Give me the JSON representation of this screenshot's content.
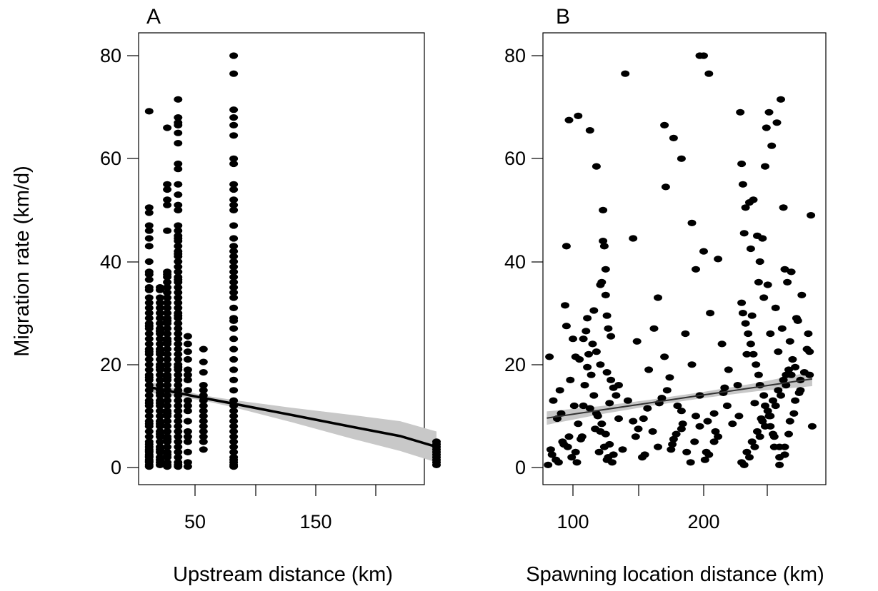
{
  "figure": {
    "ylabel": "Migration rate (km/d)"
  },
  "chart_data": [
    {
      "type": "scatter",
      "panel_label": "A",
      "xlabel": "Upstream distance (km)",
      "ylabel": "Migration rate (km/d)",
      "xlim": [
        5,
        260
      ],
      "ylim": [
        0,
        80
      ],
      "x_ticks": [
        50,
        100,
        150,
        200
      ],
      "x_tick_labels": [
        "50",
        "",
        "150",
        ""
      ],
      "y_ticks": [
        0,
        20,
        40,
        60,
        80
      ],
      "y_tick_labels": [
        "0",
        "20",
        "40",
        "60",
        "80"
      ],
      "grid": false,
      "point_color": "#000000",
      "fit": {
        "x": [
          12,
          21,
          27,
          36,
          46,
          57,
          82,
          130,
          180,
          220,
          250
        ],
        "y": [
          15.6,
          15.2,
          14.9,
          14.5,
          14.0,
          13.5,
          12.4,
          10.2,
          7.9,
          6.1,
          4.0
        ],
        "lower": [
          14.5,
          14.3,
          14.1,
          13.8,
          13.4,
          13.0,
          11.7,
          8.8,
          5.6,
          3.2,
          1.0
        ],
        "upper": [
          16.7,
          16.1,
          15.7,
          15.2,
          14.6,
          14.0,
          13.1,
          11.6,
          10.2,
          9.0,
          7.0
        ],
        "line_color": "#000000",
        "band_color": "#c8c8c8"
      },
      "points": {
        "x": [
          12,
          12,
          12,
          12,
          12,
          12,
          12,
          12,
          12,
          12,
          12,
          12,
          12,
          12,
          12,
          12,
          12,
          12,
          12,
          12,
          12,
          12,
          12,
          12,
          12,
          12,
          12,
          12,
          12,
          12,
          12,
          12,
          12,
          12,
          12,
          12,
          12,
          12,
          12,
          12,
          12,
          12,
          12,
          12,
          12,
          12,
          12,
          12,
          12,
          12,
          12,
          12,
          12,
          12,
          12,
          12,
          12,
          12,
          12,
          12,
          21,
          21,
          21,
          21,
          21,
          21,
          21,
          21,
          21,
          21,
          21,
          21,
          21,
          21,
          21,
          21,
          21,
          21,
          21,
          21,
          21,
          21,
          21,
          21,
          21,
          21,
          21,
          21,
          21,
          21,
          21,
          21,
          21,
          21,
          21,
          21,
          21,
          21,
          21,
          21,
          21,
          21,
          21,
          21,
          21,
          27,
          27,
          27,
          27,
          27,
          27,
          27,
          27,
          27,
          27,
          27,
          27,
          27,
          27,
          27,
          27,
          27,
          27,
          27,
          27,
          27,
          27,
          27,
          27,
          27,
          27,
          27,
          27,
          27,
          27,
          27,
          27,
          27,
          27,
          27,
          27,
          27,
          27,
          27,
          27,
          27,
          27,
          27,
          27,
          27,
          27,
          27,
          27,
          27,
          27,
          27,
          27,
          27,
          36,
          36,
          36,
          36,
          36,
          36,
          36,
          36,
          36,
          36,
          36,
          36,
          36,
          36,
          36,
          36,
          36,
          36,
          36,
          36,
          36,
          36,
          36,
          36,
          36,
          36,
          36,
          36,
          36,
          36,
          36,
          36,
          36,
          36,
          36,
          36,
          36,
          36,
          36,
          36,
          36,
          36,
          36,
          36,
          36,
          36,
          36,
          36,
          36,
          36,
          36,
          36,
          36,
          36,
          36,
          36,
          36,
          36,
          36,
          36,
          36,
          36,
          36,
          36,
          36,
          36,
          44,
          44,
          44,
          44,
          44,
          44,
          44,
          44,
          44,
          44,
          44,
          44,
          44,
          44,
          44,
          44,
          44,
          44,
          57,
          57,
          57,
          57,
          57,
          57,
          57,
          57,
          57,
          57,
          57,
          57,
          57,
          57,
          57,
          57,
          82,
          82,
          82,
          82,
          82,
          82,
          82,
          82,
          82,
          82,
          82,
          82,
          82,
          82,
          82,
          82,
          82,
          82,
          82,
          82,
          82,
          82,
          82,
          82,
          82,
          82,
          82,
          82,
          82,
          82,
          82,
          82,
          82,
          82,
          82,
          82,
          82,
          82,
          82,
          82,
          82,
          82,
          82,
          82,
          82,
          82,
          82,
          82,
          82,
          82,
          82,
          82,
          250,
          250,
          250,
          250,
          250,
          250,
          250,
          250,
          250,
          250
        ],
        "y": [
          69.2,
          50.5,
          49.5,
          47,
          46,
          44.5,
          43,
          40,
          38,
          35,
          34.5,
          33,
          32,
          31,
          30,
          29,
          28,
          27,
          26,
          25,
          24,
          23,
          22,
          21,
          20,
          19,
          18,
          17,
          16,
          15,
          14,
          13,
          12,
          11,
          10,
          9,
          8,
          7,
          6,
          5,
          4.5,
          4,
          3.5,
          3,
          2.5,
          2,
          1.5,
          1,
          0.5,
          0.2,
          36.5,
          37.5,
          27.5,
          17.5,
          8.5,
          1.2,
          2.2,
          3.2,
          12.5,
          22.5,
          34.5,
          33,
          31,
          29,
          27,
          25,
          23,
          21,
          19,
          17,
          15,
          13,
          11,
          9,
          7,
          5,
          3,
          1,
          0.5,
          2,
          4,
          6,
          8,
          10,
          12,
          14,
          16,
          18,
          20,
          22,
          24,
          26,
          28,
          30,
          32,
          35,
          26.5,
          19.5,
          12.5,
          6.5,
          3.5,
          1.5,
          8.5,
          14.5,
          22.5,
          66,
          55,
          54,
          52,
          51,
          46,
          38,
          37.5,
          37,
          36,
          35,
          34,
          33,
          32,
          31,
          30,
          29,
          28,
          27,
          26,
          25,
          24,
          23,
          22,
          21,
          20,
          19,
          18,
          17,
          16,
          15,
          14,
          13,
          12,
          11,
          10,
          9,
          8,
          7,
          6,
          5,
          4,
          3,
          2,
          1,
          0.5,
          0.2,
          24.5,
          17.5,
          10.5,
          5.5,
          2.5,
          28.5,
          71.5,
          68,
          67,
          66.5,
          65,
          63,
          59,
          58,
          55,
          53,
          51,
          50,
          47,
          46,
          45,
          44,
          43,
          42,
          41,
          40,
          39,
          38,
          37,
          36,
          35,
          34,
          33,
          32,
          31,
          30,
          29,
          28,
          27,
          26,
          25,
          24,
          23,
          22,
          21,
          20,
          19,
          18,
          17,
          16,
          15,
          14,
          13,
          12,
          11,
          10,
          9,
          8,
          7,
          6,
          5,
          4,
          3,
          2,
          1,
          0.5,
          0.2,
          44.5,
          41.5,
          36.5,
          29.5,
          19.5,
          25.5,
          24,
          22.5,
          21,
          19,
          17,
          15,
          13,
          11,
          9,
          7,
          5,
          3,
          1,
          0.2,
          18,
          12,
          6,
          23,
          20.5,
          18.5,
          16,
          15,
          14,
          13,
          12,
          11,
          10,
          9,
          8,
          7,
          6,
          5,
          3.5,
          80,
          76.5,
          69.5,
          68,
          66.5,
          64.5,
          60,
          59,
          55,
          54,
          52,
          51,
          50,
          47,
          43,
          42,
          41,
          40,
          39,
          38,
          37,
          36,
          35,
          34,
          33,
          31,
          29,
          27,
          25,
          23,
          21,
          19,
          17,
          15,
          13,
          12,
          11,
          10,
          9,
          8,
          7,
          6,
          5,
          4,
          3,
          2,
          1.5,
          1,
          0.5,
          0.2,
          44.5,
          28.5,
          5,
          4.5,
          4,
          3.5,
          3,
          2.5,
          2,
          1.5,
          1,
          0.5
        ]
      }
    },
    {
      "type": "scatter",
      "panel_label": "B",
      "xlabel": "Spawning location distance (km)",
      "ylabel": "",
      "xlim": [
        78,
        285
      ],
      "ylim": [
        0,
        80
      ],
      "x_ticks": [
        100,
        150,
        200,
        250
      ],
      "x_tick_labels": [
        "100",
        "",
        "200",
        ""
      ],
      "y_ticks": [
        0,
        20,
        40,
        60,
        80
      ],
      "y_tick_labels": [
        "0",
        "20",
        "40",
        "60",
        "80"
      ],
      "grid": false,
      "point_color": "#000000",
      "fit": {
        "x": [
          80,
          120,
          160,
          200,
          240,
          283
        ],
        "y": [
          9.6,
          11.1,
          12.6,
          14.1,
          15.6,
          17.2
        ],
        "lower": [
          8.3,
          10.3,
          12.0,
          13.5,
          14.8,
          15.8
        ],
        "upper": [
          10.9,
          11.9,
          13.2,
          14.7,
          16.4,
          18.6
        ],
        "line_color": "#333333",
        "band_color": "#c8c8c8"
      },
      "points": {
        "x": [
          97,
          104,
          113,
          118,
          123,
          123,
          124,
          125,
          122,
          121,
          125,
          126,
          127,
          129,
          116,
          111,
          108,
          102,
          95,
          94,
          100,
          105,
          118,
          121,
          126,
          129,
          131,
          133,
          135,
          128,
          140,
          146,
          149,
          154,
          158,
          162,
          165,
          170,
          174,
          177,
          180,
          183,
          186,
          191,
          194,
          197,
          200,
          203,
          205,
          208,
          211,
          214,
          216,
          219,
          148,
          155,
          166,
          175,
          184,
          193,
          202,
          209,
          170,
          177,
          183,
          197,
          200,
          204,
          171,
          191,
          228,
          229,
          230,
          232,
          235,
          238,
          241,
          245,
          247,
          248,
          250,
          252,
          256,
          259,
          261,
          262,
          264,
          267,
          272,
          275,
          280,
          282,
          231,
          236,
          243,
          249,
          255,
          260,
          266,
          270,
          274,
          233,
          237,
          242,
          246,
          251,
          257,
          263,
          268,
          271,
          279,
          281,
          283,
          226,
          227,
          239,
          244,
          253,
          258,
          82,
          85,
          88,
          90,
          92,
          95,
          98,
          101,
          104,
          107,
          83,
          87,
          91,
          96,
          99,
          103,
          110,
          112,
          114,
          116,
          119,
          121,
          124,
          127,
          130,
          109,
          113,
          117,
          120,
          126,
          81,
          84,
          89,
          93,
          97,
          102,
          106,
          108,
          111,
          115,
          118,
          122,
          125,
          128,
          131,
          135,
          142,
          150,
          157,
          165,
          172,
          179,
          187,
          194,
          201,
          208,
          215,
          222,
          138,
          146,
          153,
          161,
          168,
          176,
          183,
          190,
          197,
          204,
          211,
          218,
          229,
          232,
          236,
          240,
          243,
          247,
          251,
          254,
          258,
          262,
          265,
          269,
          273,
          277,
          281,
          230,
          234,
          238,
          242,
          246,
          250,
          254,
          258,
          262,
          266,
          270,
          274,
          229,
          233,
          237,
          241,
          245,
          249,
          253,
          257,
          261,
          265,
          231,
          235,
          239,
          243,
          247,
          251,
          255,
          259,
          263,
          267
        ],
        "y": [
          67.5,
          68.3,
          65.5,
          58.5,
          50,
          44,
          43,
          38.5,
          36,
          35.5,
          33.5,
          29.5,
          27,
          25.5,
          30.5,
          29,
          25,
          21.5,
          43,
          31.5,
          25,
          21,
          22.5,
          20,
          18.5,
          17,
          15.5,
          14,
          16,
          12.5,
          76.5,
          44.5,
          24.5,
          9.5,
          19,
          27,
          33,
          21.5,
          17.5,
          5.5,
          12,
          7.5,
          26,
          20,
          38.5,
          14,
          42,
          9,
          30,
          10.5,
          40.5,
          24,
          15.5,
          19,
          6,
          2.5,
          12.5,
          3.5,
          8.5,
          5,
          3,
          7,
          66.5,
          64,
          60,
          80,
          80,
          76.5,
          54.5,
          47.5,
          69,
          59,
          55,
          50.5,
          51.5,
          52,
          45,
          44.5,
          58.5,
          66,
          69,
          62.5,
          67,
          71.5,
          50.5,
          38.5,
          36,
          38,
          28.5,
          33.5,
          26,
          49,
          45.5,
          42.5,
          40,
          35.5,
          31,
          27,
          24.5,
          19.5,
          15,
          22,
          29.5,
          36,
          33,
          26,
          22.5,
          18,
          21,
          29,
          23,
          18,
          8,
          16,
          10,
          12.5,
          9.5,
          6.5,
          4,
          21.5,
          13,
          9.5,
          15,
          5,
          27.5,
          17,
          12,
          8.5,
          6,
          3.5,
          1.5,
          10.5,
          4,
          2,
          1,
          26.5,
          22,
          18,
          14,
          10,
          7,
          4,
          2,
          1,
          16,
          11.5,
          7.5,
          3,
          1.5,
          0.5,
          2.5,
          1,
          4.5,
          6,
          3,
          5.5,
          12,
          19.5,
          24,
          10.5,
          8.5,
          6.5,
          4.5,
          2.5,
          9.5,
          13,
          7.5,
          11.5,
          4,
          15,
          6.5,
          3,
          10,
          1.5,
          5,
          14.5,
          8.5,
          3.5,
          9,
          2,
          7,
          13.5,
          4.5,
          11,
          1,
          8,
          2.5,
          6,
          12,
          32,
          28,
          24,
          20,
          16,
          12,
          8,
          4,
          0.5,
          2.5,
          6.5,
          10.5,
          14.5,
          18.5,
          22.5,
          30,
          26,
          22,
          18,
          14,
          10,
          6,
          2,
          4,
          9,
          13,
          17,
          1,
          3,
          5,
          7,
          9,
          11,
          13,
          15,
          17,
          19,
          0.5,
          2,
          4,
          6,
          8,
          10,
          12,
          14,
          16,
          18
        ]
      }
    }
  ]
}
